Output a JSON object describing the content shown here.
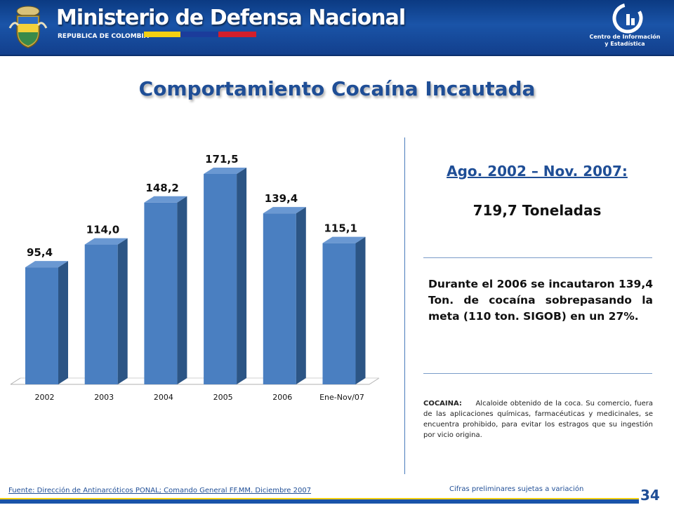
{
  "header": {
    "brand": "Ministerio de Defensa Nacional",
    "subtitle": "REPUBLICA DE COLOMBIA",
    "org_line1": "Centro de Información",
    "org_line2": "y Estadística"
  },
  "title": "Comportamiento Cocaína Incautada",
  "summary": {
    "period": "Ago. 2002 – Nov. 2007:",
    "total": "719,7 Toneladas",
    "note": "Durante el 2006 se incautaron 139,4 Ton. de cocaína sobrepasando la meta (110 ton. SIGOB) en un 27%."
  },
  "definition": {
    "term": "COCAINA:",
    "text": "Alcaloide obtenido de la coca. Su comercio, fuera de las aplicaciones químicas, farmacéuticas y medicinales, se encuentra prohibido, para evitar los estragos que su ingestión por vicio origina."
  },
  "footer": {
    "source": "Fuente: Dirección de Antinarcóticos PONAL; Comando General FF.MM. Diciembre 2007",
    "disclaimer": "Cifras preliminares sujetas a variación",
    "page": "34"
  },
  "colors": {
    "header": "#1a54a8",
    "bar_front": "#4a7fc1",
    "bar_side": "#2c5585",
    "bar_top": "#6a98d2",
    "title": "#1f4e96"
  },
  "chart_data": {
    "type": "bar",
    "categories": [
      "2002",
      "2003",
      "2004",
      "2005",
      "2006",
      "Ene-Nov/07"
    ],
    "values": [
      95.4,
      114.0,
      148.2,
      171.5,
      139.4,
      115.1
    ],
    "data_labels": [
      "95,4",
      "114,0",
      "148,2",
      "171,5",
      "139,4",
      "115,1"
    ],
    "ylim": [
      0,
      171.5
    ],
    "grid": false
  }
}
